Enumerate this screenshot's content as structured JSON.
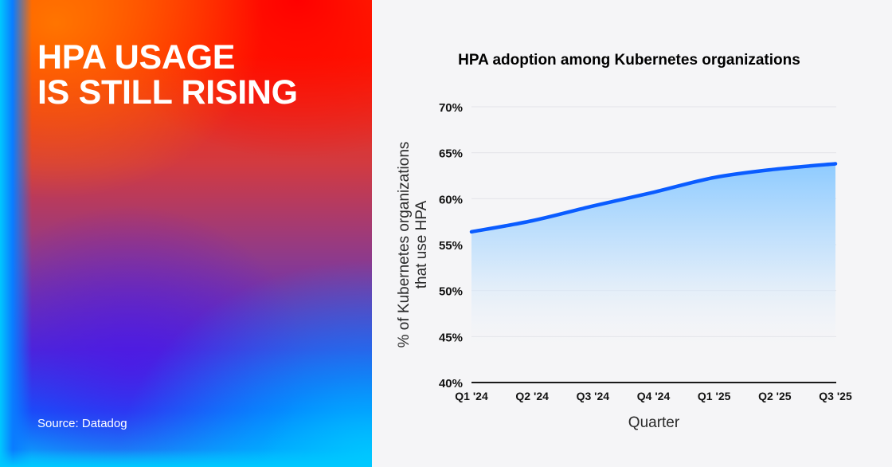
{
  "hero": {
    "headline_line1": "HPA USAGE",
    "headline_line2": "IS STILL RISING",
    "source": "Source: Datadog"
  },
  "colors": {
    "line": "#0a5cff",
    "fill_top": "#8ecbff",
    "grid": "#e3e3e8",
    "axis": "#1a1a1a",
    "background": "#f5f5f7"
  },
  "chart_data": {
    "type": "area",
    "title": "HPA adoption among Kubernetes organizations",
    "xlabel": "Quarter",
    "ylabel": "% of Kubernetes organizations that use HPA",
    "ylabel_lines": [
      "% of Kubernetes organizations",
      "that use HPA"
    ],
    "categories": [
      "Q1 '24",
      "Q2 '24",
      "Q3 '24",
      "Q4 '24",
      "Q1 '25",
      "Q2 '25",
      "Q3 '25"
    ],
    "series": [
      {
        "name": "HPA adoption",
        "values": [
          56.4,
          57.6,
          59.2,
          60.7,
          62.3,
          63.2,
          63.8
        ]
      }
    ],
    "ylim": [
      40,
      70
    ],
    "yticks": [
      40,
      45,
      50,
      55,
      60,
      65,
      70
    ],
    "ytick_labels": [
      "40%",
      "45%",
      "50%",
      "55%",
      "60%",
      "65%",
      "70%"
    ],
    "grid": true,
    "legend": "none"
  }
}
